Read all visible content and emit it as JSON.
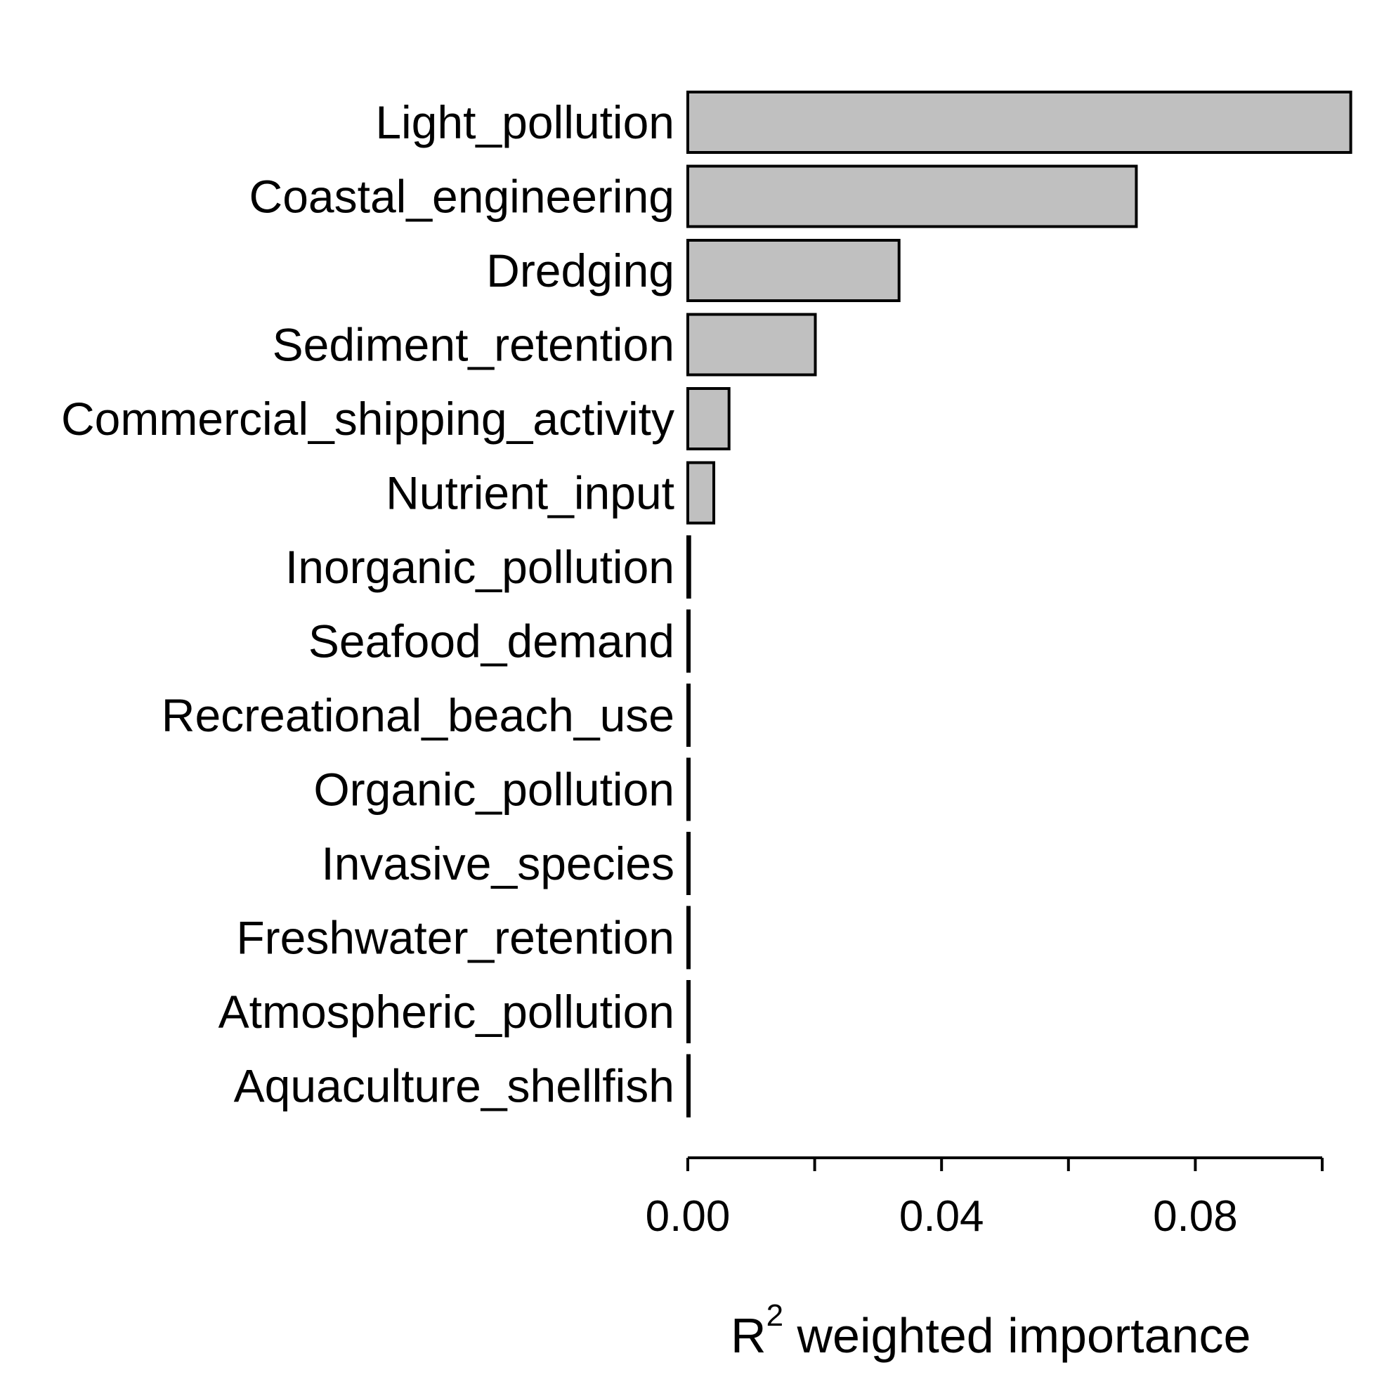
{
  "chart_data": {
    "type": "bar",
    "orientation": "horizontal",
    "categories": [
      "Light_pollution",
      "Coastal_engineering",
      "Dredging",
      "Sediment_retention",
      "Commercial_shipping_activity",
      "Nutrient_input",
      "Inorganic_pollution",
      "Seafood_demand",
      "Recreational_beach_use",
      "Organic_pollution",
      "Invasive_species",
      "Freshwater_retention",
      "Atmospheric_pollution",
      "Aquaculture_shellfish"
    ],
    "values": [
      0.1045,
      0.0707,
      0.0333,
      0.0201,
      0.0065,
      0.0041,
      0.0003,
      0.0001,
      0.0001,
      0.0001,
      0.0001,
      0.0001,
      0.0001,
      0.0001
    ],
    "xlim": [
      0,
      0.1
    ],
    "x_major_ticks": [
      0,
      0.04,
      0.08
    ],
    "x_minor_ticks": [
      0.02,
      0.06,
      0.1
    ],
    "x_tick_labels": [
      "0.00",
      "0.04",
      "0.08"
    ],
    "xlabel_main": "R",
    "xlabel_superscript": "2",
    "xlabel_rest": " weighted importance",
    "bar_color": "#c0c0c0",
    "grid": false,
    "legend": "none"
  }
}
